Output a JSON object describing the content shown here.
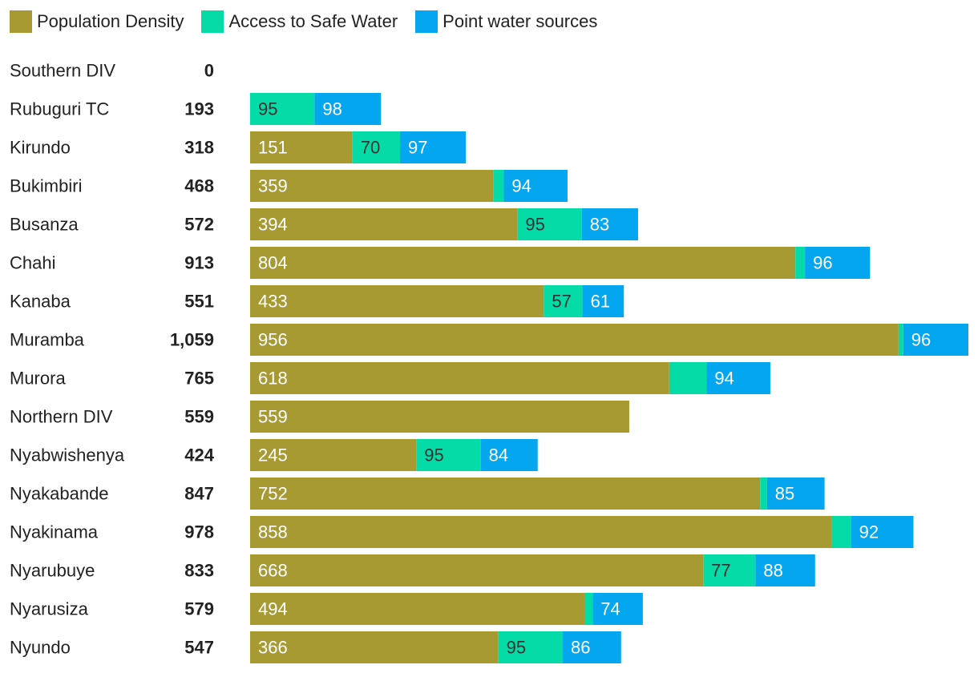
{
  "chart_data": {
    "type": "bar",
    "orientation": "horizontal",
    "stacked": true,
    "series": [
      {
        "name": "Population Density",
        "color": "#a89a32",
        "label_color": "#ffffff",
        "values": [
          0,
          0,
          151,
          359,
          394,
          804,
          433,
          956,
          618,
          559,
          245,
          752,
          858,
          668,
          494,
          366
        ]
      },
      {
        "name": "Access to Safe Water",
        "color": "#05dba6",
        "label_color": "#333333",
        "values": [
          0,
          95,
          70,
          15,
          95,
          14,
          57,
          7,
          55,
          0,
          95,
          10,
          28,
          77,
          11,
          95
        ]
      },
      {
        "name": "Point water sources",
        "color": "#05a6f0",
        "label_color": "#ffffff",
        "values": [
          0,
          98,
          97,
          94,
          83,
          96,
          61,
          96,
          94,
          0,
          84,
          85,
          92,
          88,
          74,
          86
        ]
      }
    ],
    "categories": [
      "Southern DIV",
      "Rubuguri TC",
      "Kirundo",
      "Bukimbiri",
      "Busanza",
      "Chahi",
      "Kanaba",
      "Muramba",
      "Murora",
      "Northern DIV",
      "Nyabwishenya",
      "Nyakabande",
      "Nyakinama",
      "Nyarubuye",
      "Nyarusiza",
      "Nyundo"
    ],
    "totals": [
      "0",
      "193",
      "318",
      "468",
      "572",
      "913",
      "551",
      "1,059",
      "765",
      "559",
      "424",
      "847",
      "978",
      "833",
      "579",
      "547"
    ],
    "segment_labels": [
      [
        "",
        "",
        ""
      ],
      [
        "",
        "95",
        "98"
      ],
      [
        "151",
        "70",
        "97"
      ],
      [
        "359",
        "",
        "94"
      ],
      [
        "394",
        "95",
        "83"
      ],
      [
        "804",
        "",
        "96"
      ],
      [
        "433",
        "57",
        "61"
      ],
      [
        "956",
        "",
        "96"
      ],
      [
        "618",
        "",
        "94"
      ],
      [
        "559",
        "",
        ""
      ],
      [
        "245",
        "95",
        "84"
      ],
      [
        "752",
        "",
        "85"
      ],
      [
        "858",
        "",
        "92"
      ],
      [
        "668",
        "77",
        "88"
      ],
      [
        "494",
        "",
        "74"
      ],
      [
        "366",
        "95",
        "86"
      ]
    ],
    "xlim": [
      0,
      1059
    ],
    "legend": "top-left",
    "grid": false
  }
}
